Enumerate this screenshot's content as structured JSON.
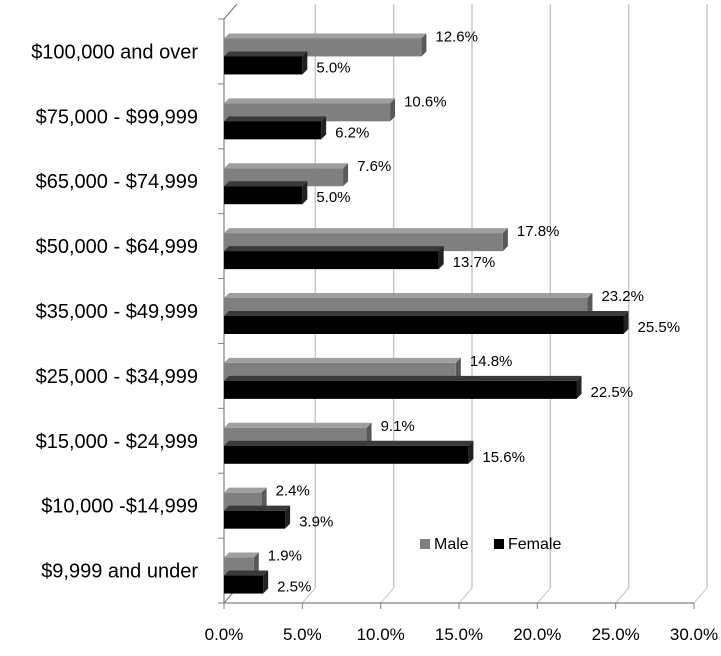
{
  "chart_data": {
    "type": "bar",
    "orientation": "horizontal",
    "style": "3d",
    "categories": [
      "$100,000 and over",
      "$75,000 - $99,999",
      "$65,000 - $74,999",
      "$50,000 - $64,999",
      "$35,000 - $49,999",
      "$25,000 - $34,999",
      "$15,000 - $24,999",
      "$10,000 -$14,999",
      "$9,999 and under"
    ],
    "series": [
      {
        "name": "Male",
        "color": "#7f7f7f",
        "values": [
          12.6,
          10.6,
          7.6,
          17.8,
          23.2,
          14.8,
          9.1,
          2.4,
          1.9
        ],
        "labels": [
          "12.6%",
          "10.6%",
          "7.6%",
          "17.8%",
          "23.2%",
          "14.8%",
          "9.1%",
          "2.4%",
          "1.9%"
        ]
      },
      {
        "name": "Female",
        "color": "#000000",
        "values": [
          5.0,
          6.2,
          5.0,
          13.7,
          25.5,
          22.5,
          15.6,
          3.9,
          2.5
        ],
        "labels": [
          "5.0%",
          "6.2%",
          "5.0%",
          "13.7%",
          "25.5%",
          "22.5%",
          "15.6%",
          "3.9%",
          "2.5%"
        ]
      }
    ],
    "xlim": [
      0,
      30
    ],
    "xticks": [
      "0.0%",
      "5.0%",
      "10.0%",
      "15.0%",
      "20.0%",
      "25.0%",
      "30.0%"
    ],
    "grid": true,
    "legend": {
      "placement": "bottom-right",
      "entries": [
        "Male",
        "Female"
      ]
    }
  }
}
